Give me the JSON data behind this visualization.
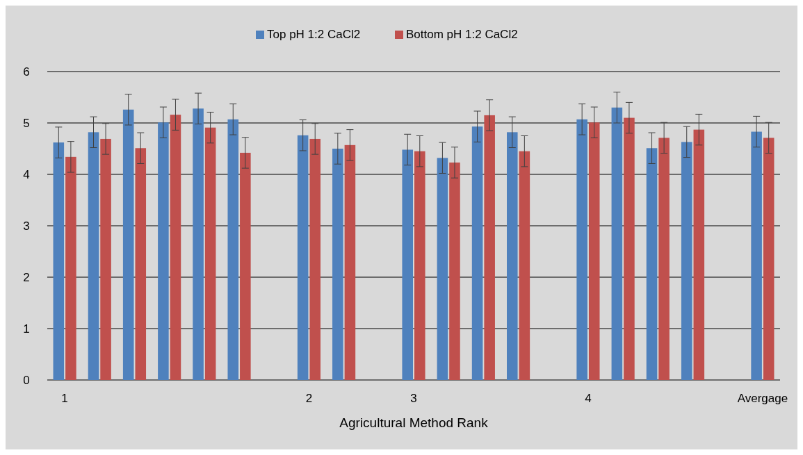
{
  "chart_data": {
    "type": "bar",
    "xlabel": "Agricultural Method Rank",
    "categories": [
      "1",
      null,
      null,
      null,
      null,
      null,
      null,
      "2",
      null,
      null,
      "3",
      null,
      null,
      null,
      null,
      "4",
      null,
      null,
      null,
      null,
      "Avergage"
    ],
    "series": [
      {
        "name": "Top pH 1:2 CaCl2",
        "color": "#4f81bd",
        "values": [
          4.62,
          4.82,
          5.26,
          5.01,
          5.28,
          5.07,
          null,
          4.76,
          4.5,
          null,
          4.48,
          4.32,
          4.93,
          4.82,
          null,
          5.07,
          5.3,
          4.51,
          4.63,
          null,
          4.83
        ],
        "errors": [
          0.3,
          0.3,
          0.3,
          0.3,
          0.3,
          0.3,
          null,
          0.3,
          0.3,
          null,
          0.3,
          0.3,
          0.3,
          0.3,
          null,
          0.3,
          0.3,
          0.3,
          0.3,
          null,
          0.3
        ]
      },
      {
        "name": "Bottom pH 1:2 CaCl2",
        "color": "#c0504d",
        "values": [
          4.34,
          4.69,
          4.51,
          5.16,
          4.91,
          4.42,
          null,
          4.69,
          4.57,
          null,
          4.45,
          4.23,
          5.15,
          4.45,
          null,
          5.01,
          5.1,
          4.71,
          4.87,
          null,
          4.71
        ],
        "errors": [
          0.3,
          0.3,
          0.3,
          0.3,
          0.3,
          0.3,
          null,
          0.3,
          0.3,
          null,
          0.3,
          0.3,
          0.3,
          0.3,
          null,
          0.3,
          0.3,
          0.3,
          0.3,
          null,
          0.3
        ]
      }
    ],
    "ylim": [
      0,
      6
    ],
    "yticks": [
      0,
      1,
      2,
      3,
      4,
      5,
      6
    ],
    "grid": "y",
    "legend": "top"
  }
}
